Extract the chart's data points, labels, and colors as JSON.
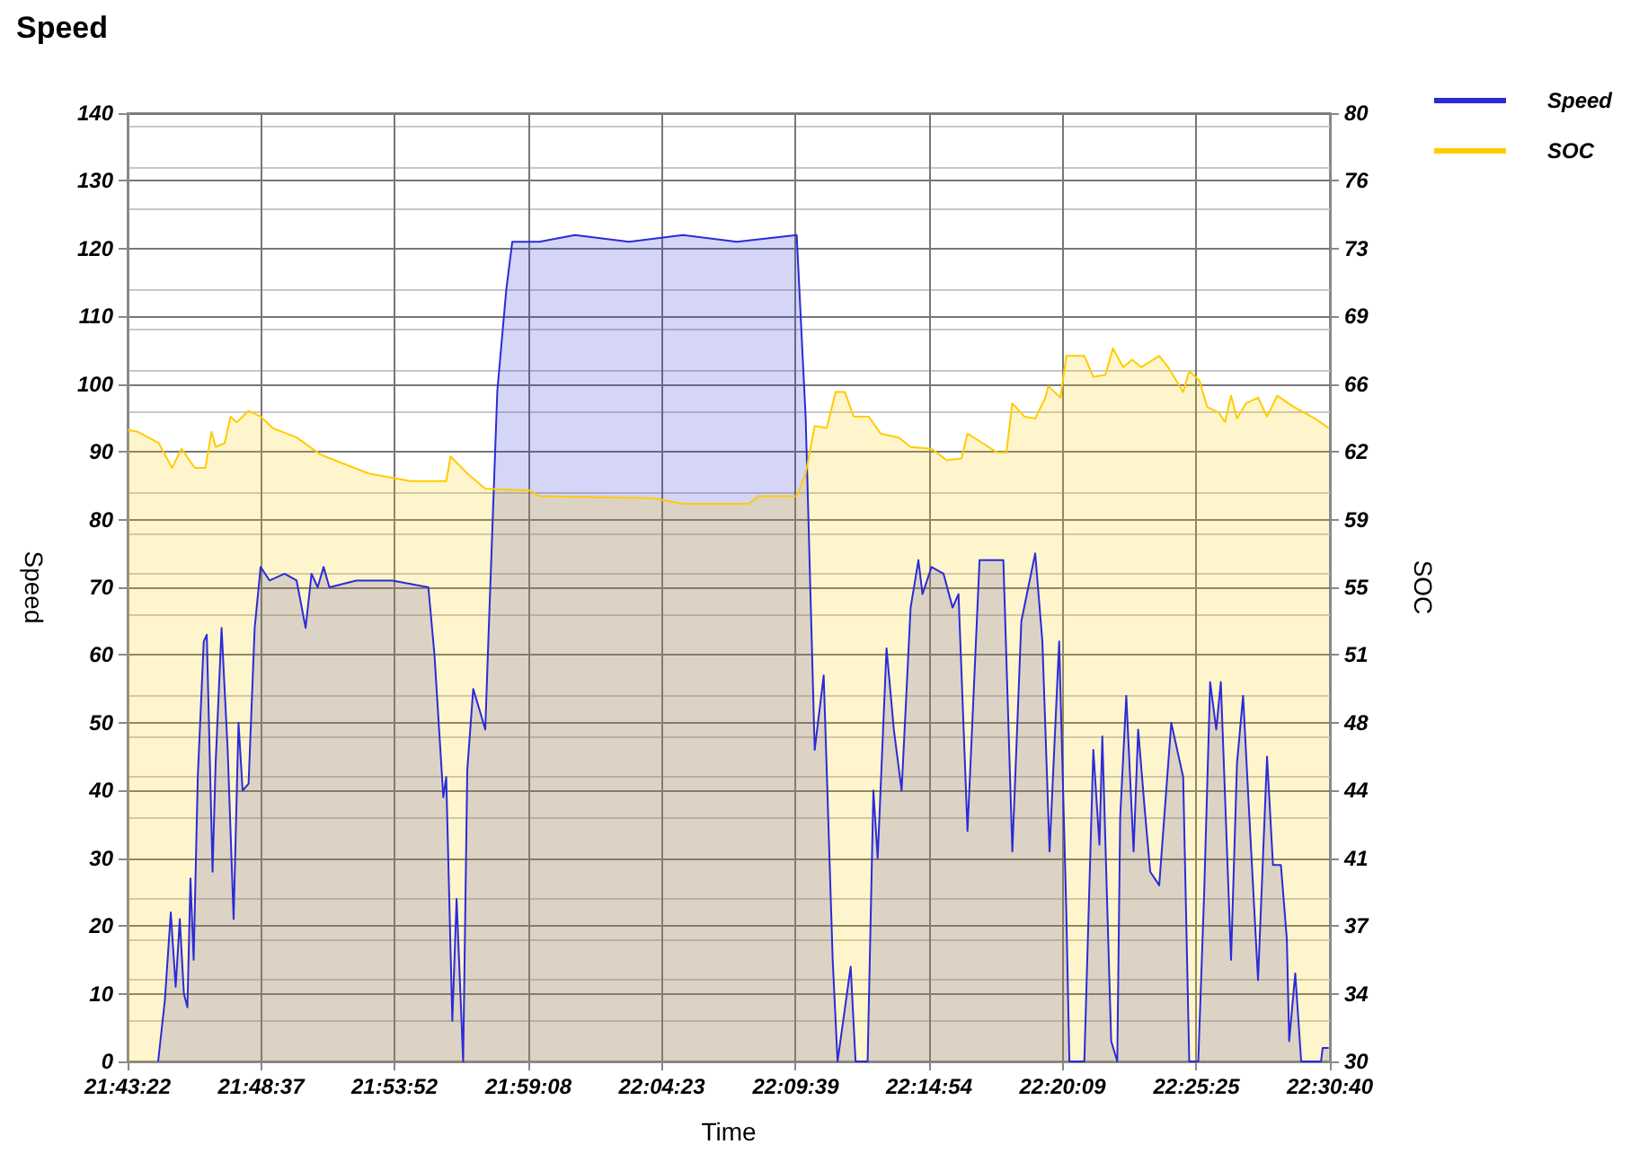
{
  "chart_data": {
    "type": "area",
    "title": "Speed",
    "xlabel": "Time",
    "ylabel": "Speed",
    "y2label": "SOC",
    "xlim": [
      21.72278,
      22.51111
    ],
    "xticks": [
      {
        "value": 21.72278,
        "label": "21:43:22"
      },
      {
        "value": 21.81028,
        "label": "21:48:37"
      },
      {
        "value": 21.89778,
        "label": "21:53:52"
      },
      {
        "value": 21.98556,
        "label": "21:59:08"
      },
      {
        "value": 22.07306,
        "label": "22:04:23"
      },
      {
        "value": 22.16083,
        "label": "22:09:39"
      },
      {
        "value": 22.24833,
        "label": "22:14:54"
      },
      {
        "value": 22.33583,
        "label": "22:20:09"
      },
      {
        "value": 22.42361,
        "label": "22:25:25"
      },
      {
        "value": 22.51111,
        "label": "22:30:40"
      }
    ],
    "ylim": [
      0,
      140
    ],
    "yticks": [
      0,
      10,
      20,
      30,
      40,
      50,
      60,
      70,
      80,
      90,
      100,
      110,
      120,
      130,
      140
    ],
    "y2lim": [
      30,
      80
    ],
    "y2ticks": [
      30,
      {
        "value": 33.571,
        "label": "34"
      },
      {
        "value": 37.143,
        "label": "37"
      },
      {
        "value": 40.714,
        "label": "41"
      },
      {
        "value": 44.286,
        "label": "44"
      },
      {
        "value": 47.857,
        "label": "48"
      },
      {
        "value": 51.429,
        "label": "51"
      },
      55,
      {
        "value": 58.571,
        "label": "59"
      },
      {
        "value": 62.143,
        "label": "62"
      },
      {
        "value": 65.714,
        "label": "66"
      },
      {
        "value": 69.286,
        "label": "69"
      },
      {
        "value": 72.857,
        "label": "73"
      },
      {
        "value": 76.429,
        "label": "76"
      },
      80
    ],
    "grid": true,
    "legend": "top right",
    "series": [
      {
        "name": "Speed",
        "color": "#2b2bd9",
        "x": [
          21.7428,
          21.7472,
          21.7511,
          21.7543,
          21.757,
          21.7597,
          21.762,
          21.764,
          21.7661,
          21.7688,
          21.7727,
          21.7747,
          21.7785,
          21.7805,
          21.7844,
          21.7884,
          21.7923,
          21.7955,
          21.7982,
          21.8021,
          21.8061,
          21.81,
          21.8159,
          21.8257,
          21.8336,
          21.8395,
          21.8434,
          21.8474,
          21.8513,
          21.8551,
          21.8728,
          21.8964,
          21.92,
          21.924,
          21.9298,
          21.9317,
          21.9357,
          21.9385,
          21.9428,
          21.9455,
          21.9494,
          21.9534,
          21.9573,
          21.9593,
          21.9652,
          21.9711,
          21.975,
          21.9927,
          22.0162,
          22.0516,
          22.0869,
          22.1223,
          22.1615,
          22.1674,
          22.1733,
          22.1792,
          22.1812,
          22.1851,
          22.1883,
          22.1969,
          22.2001,
          22.208,
          22.2118,
          22.2146,
          22.2204,
          22.2252,
          22.2303,
          22.2362,
          22.2413,
          22.244,
          22.2499,
          22.2578,
          22.2637,
          22.2676,
          22.2735,
          22.2814,
          22.297,
          22.3029,
          22.3088,
          22.3179,
          22.3226,
          22.3273,
          22.3336,
          22.3383,
          22.3403,
          22.3501,
          22.356,
          22.36,
          22.3619,
          22.3677,
          22.3717,
          22.3736,
          22.3776,
          22.3824,
          22.3854,
          22.3894,
          22.3933,
          22.3992,
          22.4071,
          22.4149,
          22.4189,
          22.4248,
          22.4287,
          22.4326,
          22.4366,
          22.4396,
          22.4463,
          22.4502,
          22.4542,
          22.4581,
          22.464,
          22.4699,
          22.4738,
          22.479,
          22.4829,
          22.4844,
          22.4884,
          22.4923,
          22.5053,
          22.5064,
          22.5103
        ],
        "values": [
          0,
          9,
          22,
          11,
          21,
          10,
          8,
          27,
          15,
          42,
          62,
          63,
          28,
          44,
          64,
          46,
          21,
          50,
          40,
          41,
          64,
          73,
          71,
          72,
          71,
          64,
          72,
          70,
          73,
          70,
          71,
          71,
          70,
          60,
          39,
          42,
          6,
          24,
          0,
          43,
          55,
          52,
          49,
          62,
          99,
          114,
          121,
          121,
          122,
          121,
          122,
          121,
          122,
          95,
          46,
          57,
          43,
          15,
          0,
          14,
          0,
          0,
          40,
          30,
          61,
          49,
          40,
          67,
          74,
          69,
          73,
          72,
          67,
          69,
          34,
          74,
          74,
          31,
          65,
          75,
          62,
          31,
          62,
          22,
          0,
          0,
          46,
          32,
          48,
          3,
          0,
          36,
          54,
          31,
          49,
          38,
          28,
          26,
          50,
          42,
          0,
          0,
          25,
          56,
          49,
          56,
          15,
          44,
          54,
          37,
          12,
          45,
          29,
          29,
          18,
          3,
          13,
          0,
          0,
          2,
          2
        ]
      },
      {
        "name": "SOC",
        "color": "#ffcc00",
        "axis": "y2",
        "x": [
          21.7228,
          21.7295,
          21.7432,
          21.7519,
          21.7582,
          21.7668,
          21.7738,
          21.7778,
          21.7805,
          21.7864,
          21.7903,
          21.7943,
          21.8021,
          21.81,
          21.8179,
          21.8336,
          21.8492,
          21.865,
          21.8807,
          21.9082,
          21.9317,
          21.9346,
          21.9455,
          21.9573,
          21.9868,
          21.9927,
          22.0673,
          22.0869,
          22.1302,
          22.1361,
          22.1615,
          22.1674,
          22.1733,
          22.1812,
          22.1871,
          22.193,
          22.1989,
          22.2087,
          22.2166,
          22.2283,
          22.2362,
          22.2499,
          22.2598,
          22.2696,
          22.2735,
          22.2834,
          22.2932,
          22.299,
          22.3029,
          22.3108,
          22.3179,
          22.3246,
          22.3265,
          22.3344,
          22.3383,
          22.3501,
          22.356,
          22.3639,
          22.3689,
          22.3756,
          22.3815,
          22.3874,
          22.3992,
          22.4051,
          22.4149,
          22.4189,
          22.4255,
          22.4307,
          22.4384,
          22.4424,
          22.4463,
          22.4502,
          22.4561,
          22.464,
          22.4699,
          22.4766,
          22.4876,
          22.5014,
          22.5103
        ],
        "values": [
          63.3,
          63.2,
          62.6,
          61.3,
          62.3,
          61.3,
          61.3,
          63.2,
          62.4,
          62.6,
          64,
          63.7,
          64.3,
          64,
          63.4,
          62.9,
          62,
          61.5,
          61,
          60.6,
          60.6,
          61.9,
          61,
          60.2,
          60.1,
          59.8,
          59.7,
          59.4,
          59.4,
          59.8,
          59.8,
          61,
          63.5,
          63.4,
          65.3,
          65.3,
          64,
          64,
          63.1,
          62.9,
          62.4,
          62.3,
          61.7,
          61.8,
          63.1,
          62.6,
          62.1,
          62.1,
          64.7,
          64,
          63.9,
          65,
          65.6,
          65,
          67.2,
          67.2,
          66.1,
          66.2,
          67.6,
          66.6,
          67,
          66.6,
          67.2,
          66.6,
          65.3,
          66.4,
          65.9,
          64.5,
          64.2,
          63.7,
          65.1,
          63.9,
          64.7,
          65,
          64,
          65.1,
          64.5,
          63.9,
          63.4
        ]
      }
    ]
  }
}
